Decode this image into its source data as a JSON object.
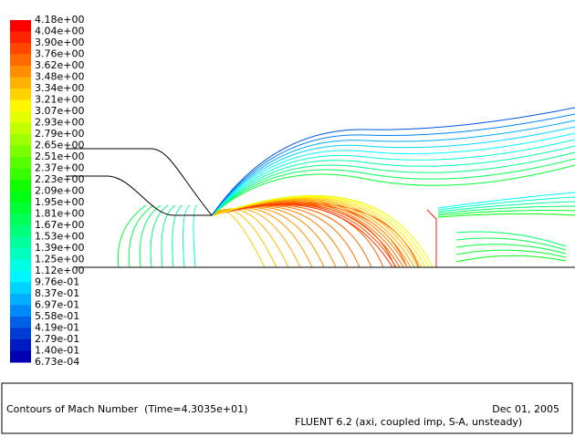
{
  "colorbar": {
    "labels": [
      "4.18e+00",
      "4.04e+00",
      "3.90e+00",
      "3.76e+00",
      "3.62e+00",
      "3.48e+00",
      "3.34e+00",
      "3.21e+00",
      "3.07e+00",
      "2.93e+00",
      "2.79e+00",
      "2.65e+00",
      "2.51e+00",
      "2.37e+00",
      "2.23e+00",
      "2.09e+00",
      "1.95e+00",
      "1.81e+00",
      "1.67e+00",
      "1.53e+00",
      "1.39e+00",
      "1.25e+00",
      "1.12e+00",
      "9.76e-01",
      "8.37e-01",
      "6.97e-01",
      "5.58e-01",
      "4.19e-01",
      "2.79e-01",
      "1.40e-01",
      "6.73e-04"
    ]
  },
  "footer": {
    "title": "Contours of Mach Number  (Time=4.3035e+01)",
    "date": "Dec 01, 2005",
    "solver": "FLUENT 6.2 (axi, coupled imp, S-A, unsteady)"
  }
}
